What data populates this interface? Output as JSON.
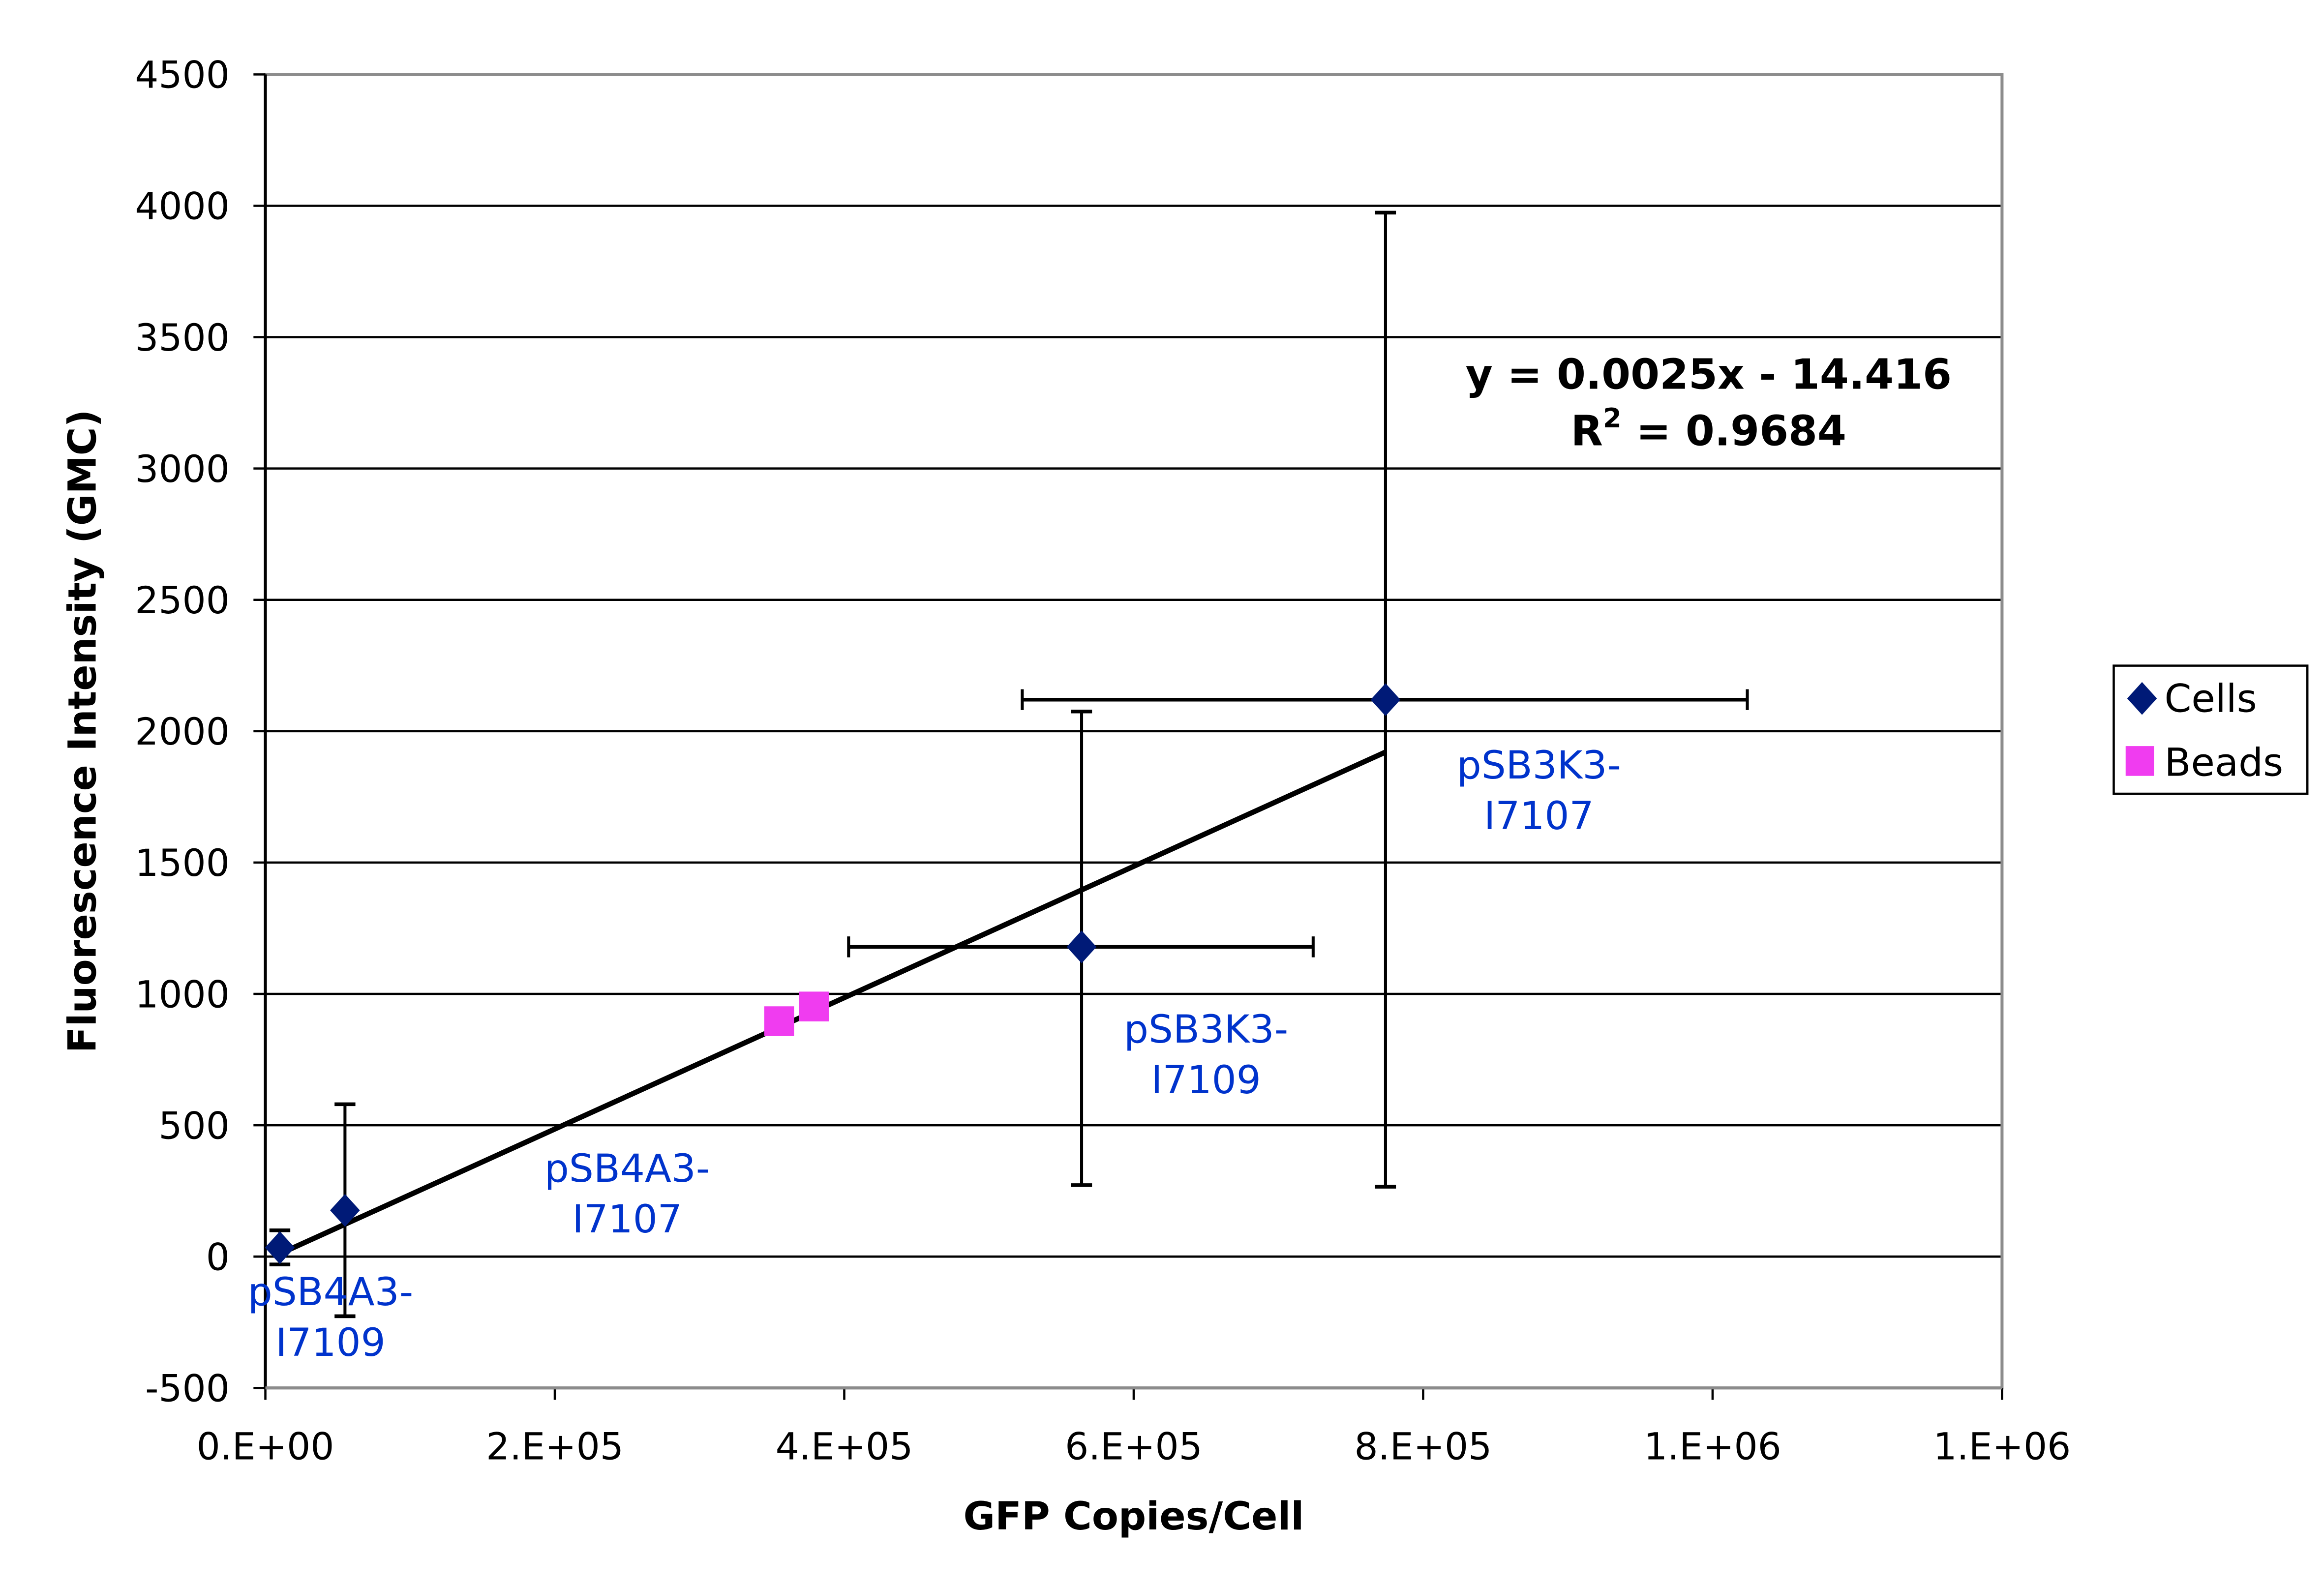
{
  "chart_data": {
    "type": "scatter",
    "title": "",
    "xlabel": "GFP Copies/Cell",
    "ylabel": "Fluorescence Intensity (GMC)",
    "xlim": [
      0,
      1200000
    ],
    "ylim": [
      -500,
      4500
    ],
    "grid": "horizontal",
    "legend_position": "right",
    "x_ticks": [
      0,
      200000,
      400000,
      600000,
      800000,
      1000000,
      1200000
    ],
    "x_tick_labels": [
      "0.E+00",
      "2.E+05",
      "4.E+05",
      "6.E+05",
      "8.E+05",
      "1.E+06",
      "1.E+06"
    ],
    "y_ticks": [
      -500,
      0,
      500,
      1000,
      1500,
      2000,
      2500,
      3000,
      3500,
      4000,
      4500
    ],
    "y_tick_labels": [
      "-500",
      "0",
      "500",
      "1000",
      "1500",
      "2000",
      "2500",
      "3000",
      "3500",
      "4000",
      "4500"
    ],
    "series": [
      {
        "name": "Cells",
        "color": "#001a77",
        "marker": "diamond",
        "points": [
          {
            "x": 10000,
            "y": 34,
            "y_err_low": -30,
            "y_err_high": 100,
            "x_err_low": null,
            "x_err_high": null
          },
          {
            "x": 55000,
            "y": 176,
            "y_err_low": -227,
            "y_err_high": 580,
            "x_err_low": null,
            "x_err_high": null
          },
          {
            "x": 564000,
            "y": 1179,
            "y_err_low": 272,
            "y_err_high": 2075,
            "x_err_low": 403000,
            "x_err_high": 724000
          },
          {
            "x": 774000,
            "y": 2120,
            "y_err_low": 266,
            "y_err_high": 3974,
            "x_err_low": 523000,
            "x_err_high": 1024000
          }
        ]
      },
      {
        "name": "Beads",
        "color": "#f03cf0",
        "marker": "square",
        "points": [
          {
            "x": 355000,
            "y": 896,
            "y_err_low": 850,
            "y_err_high": 940
          },
          {
            "x": 379000,
            "y": 952,
            "y_err_low": 905,
            "y_err_high": 995
          }
        ]
      }
    ],
    "trendline": {
      "slope": 0.0025,
      "intercept": -14.416,
      "x_range": [
        10000,
        774000
      ],
      "equation": "y = 0.0025x - 14.416",
      "r2_prefix": "R",
      "r2_sup": "2",
      "r2_value": " = 0.9684"
    },
    "annotations": [
      {
        "line1": "pSB4A3-",
        "line2": "I7109",
        "x": 45000,
        "y": -185
      },
      {
        "line1": "pSB4A3-",
        "line2": "I7107",
        "x": 250000,
        "y": 285
      },
      {
        "line1": "pSB3K3-",
        "line2": "I7109",
        "x": 650000,
        "y": 815
      },
      {
        "line1": "pSB3K3-",
        "line2": "I7107",
        "x": 880000,
        "y": 1820
      }
    ],
    "annotation_color": "#0033cc"
  }
}
